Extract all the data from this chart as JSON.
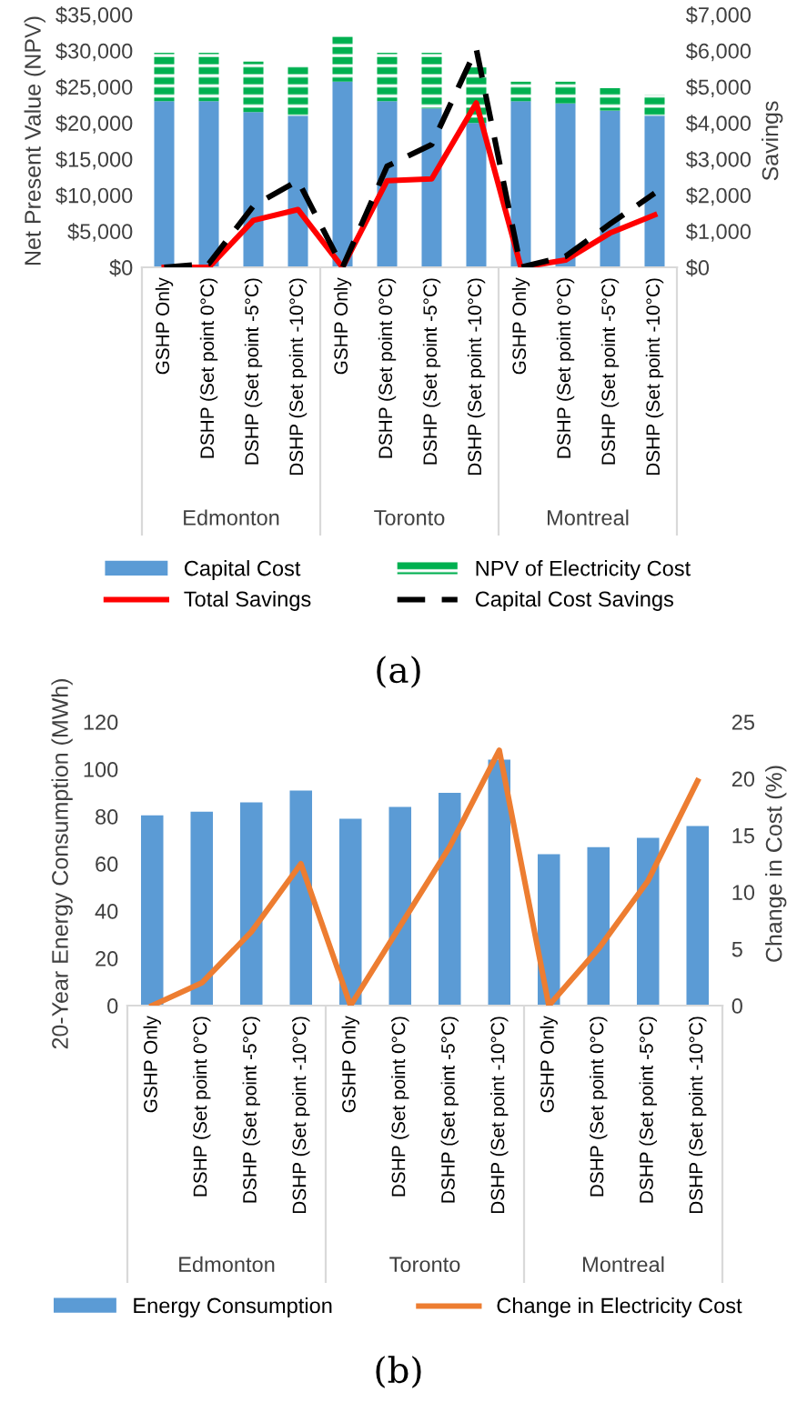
{
  "chart_data": [
    {
      "type": "bar",
      "stacked": true,
      "ylabel": "Net Present Value (NPV)",
      "y2label": "Savings",
      "categories": [
        "GSHP Only",
        "DSHP (Set point 0°C)",
        "DSHP (Set point -5°C)",
        "DSHP (Set point -10°C)",
        "GSHP Only",
        "DSHP (Set point 0°C)",
        "DSHP (Set point -5°C)",
        "DSHP (Set point -10°C)",
        "GSHP Only",
        "DSHP (Set point 0°C)",
        "DSHP (Set point -5°C)",
        "DSHP (Set point -10°C)"
      ],
      "series": [
        {
          "name": "Capital Cost",
          "color": "#5b9bd5",
          "values": [
            23000,
            23000,
            21500,
            21000,
            25700,
            23000,
            22000,
            20000,
            23000,
            22700,
            21700,
            21000
          ]
        },
        {
          "name": "NPV of Electricity Cost",
          "color": "#00b050",
          "values": [
            6700,
            6700,
            7000,
            6800,
            6300,
            6700,
            7700,
            7700,
            2700,
            3000,
            3100,
            2900
          ]
        },
        {
          "name": "Total Savings",
          "type": "line",
          "axis": "y2",
          "color": "#ff0000",
          "line_style": "solid",
          "values": [
            0,
            0,
            1300,
            1600,
            0,
            2400,
            2450,
            4550,
            0,
            200,
            950,
            1450
          ]
        },
        {
          "name": "Capital Cost Savings",
          "type": "line",
          "axis": "y2",
          "color": "#000000",
          "line_style": "dashed",
          "values": [
            0,
            100,
            1700,
            2400,
            0,
            2800,
            3400,
            6050,
            0,
            300,
            1200,
            2050
          ]
        }
      ],
      "ylim": [
        0,
        35000
      ],
      "yticks": [
        {
          "value": 0,
          "label": "$0"
        },
        {
          "value": 5000,
          "label": "$5,000"
        },
        {
          "value": 10000,
          "label": "$10,000"
        },
        {
          "value": 15000,
          "label": "$15,000"
        },
        {
          "value": 20000,
          "label": "$20,000"
        },
        {
          "value": 25000,
          "label": "$25,000"
        },
        {
          "value": 30000,
          "label": "$30,000"
        },
        {
          "value": 35000,
          "label": "$35,000"
        }
      ],
      "y2lim": [
        0,
        7000
      ],
      "y2ticks": [
        {
          "value": 0,
          "label": "$0"
        },
        {
          "value": 1000,
          "label": "$1,000"
        },
        {
          "value": 2000,
          "label": "$2,000"
        },
        {
          "value": 3000,
          "label": "$3,000"
        },
        {
          "value": 4000,
          "label": "$4,000"
        },
        {
          "value": 5000,
          "label": "$5,000"
        },
        {
          "value": 6000,
          "label": "$6,000"
        },
        {
          "value": 7000,
          "label": "$7,000"
        }
      ],
      "grid": false,
      "legend": "bottom",
      "annotations": [
        "Edmonton",
        "Toronto",
        "Montreal",
        "(a)"
      ]
    },
    {
      "type": "bar",
      "ylabel": "20-Year Energy Consumption (MWh)",
      "y2label": "Change in Cost (%)",
      "categories": [
        "GSHP Only",
        "DSHP (Set point 0°C)",
        "DSHP (Set point -5°C)",
        "DSHP (Set point -10°C)",
        "GSHP Only",
        "DSHP (Set point 0°C)",
        "DSHP (Set point -5°C)",
        "DSHP (Set point -10°C)",
        "GSHP Only",
        "DSHP (Set point 0°C)",
        "DSHP (Set point -5°C)",
        "DSHP (Set point -10°C)"
      ],
      "series": [
        {
          "name": "Energy Consumption",
          "color": "#5b9bd5",
          "values": [
            80.5,
            82,
            86,
            91,
            79,
            84,
            90,
            104,
            64,
            67,
            71,
            76
          ]
        },
        {
          "name": "Change in Electricity Cost",
          "type": "line",
          "axis": "y2",
          "color": "#ed7d31",
          "line_style": "solid",
          "values": [
            0,
            2,
            6.5,
            12.5,
            0,
            7,
            14,
            22.5,
            0,
            5,
            11,
            19.8
          ]
        }
      ],
      "ylim": [
        0,
        120
      ],
      "yticks": [
        0,
        20,
        40,
        60,
        80,
        100,
        120
      ],
      "y2lim": [
        0,
        25
      ],
      "y2ticks": [
        0,
        5,
        10,
        15,
        20,
        25
      ],
      "grid": false,
      "legend": "bottom",
      "annotations": [
        "Edmonton",
        "Toronto",
        "Montreal",
        "(b)"
      ]
    }
  ]
}
